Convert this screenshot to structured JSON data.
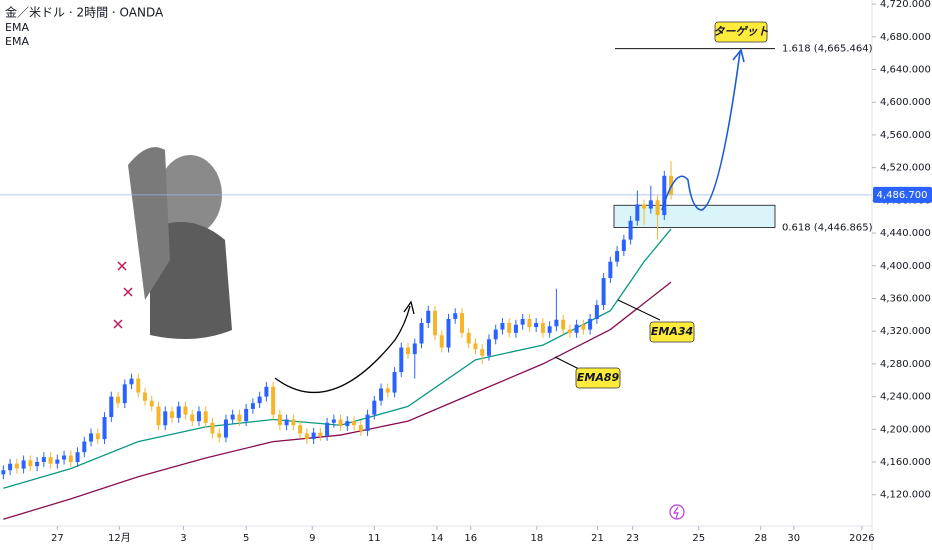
{
  "chart_data": {
    "type": "candlestick",
    "title": "金／米ドル · 2時間 · OANDA",
    "indicators": [
      "EMA",
      "EMA"
    ],
    "up_color": "#2962ff",
    "down_color": "#f5b42a",
    "open": [
      4145,
      4150,
      4158,
      4152,
      4162,
      4155,
      4160,
      4166,
      4158,
      4163,
      4168,
      4160,
      4172,
      4185,
      4195,
      4188,
      4215,
      4240,
      4232,
      4255,
      4262,
      4245,
      4235,
      4228,
      4205,
      4222,
      4214,
      4228,
      4218,
      4210,
      4222,
      4208,
      4195,
      4190,
      4212,
      4218,
      4210,
      4225,
      4232,
      4240,
      4252,
      4218,
      4205,
      4212,
      4205,
      4195,
      4188,
      4196,
      4192,
      4208,
      4212,
      4204,
      4210,
      4205,
      4198,
      4218,
      4235,
      4250,
      4245,
      4270,
      4300,
      4292,
      4305,
      4330,
      4345,
      4315,
      4300,
      4335,
      4342,
      4318,
      4305,
      4298,
      4290,
      4310,
      4322,
      4330,
      4318,
      4328,
      4335,
      4325,
      4330,
      4318,
      4326,
      4334,
      4322,
      4318,
      4328,
      4322,
      4335,
      4352,
      4385,
      4405,
      4418,
      4432,
      4455,
      4475,
      4470,
      4480,
      4462,
      4510
    ],
    "high": [
      4156,
      4164,
      4164,
      4168,
      4168,
      4166,
      4172,
      4172,
      4169,
      4174,
      4174,
      4178,
      4191,
      4201,
      4201,
      4221,
      4246,
      4246,
      4261,
      4268,
      4268,
      4251,
      4241,
      4234,
      4228,
      4228,
      4234,
      4234,
      4224,
      4228,
      4228,
      4214,
      4201,
      4218,
      4224,
      4224,
      4231,
      4238,
      4246,
      4258,
      4258,
      4224,
      4218,
      4218,
      4211,
      4201,
      4202,
      4202,
      4214,
      4218,
      4218,
      4216,
      4216,
      4211,
      4224,
      4241,
      4256,
      4256,
      4276,
      4306,
      4306,
      4311,
      4336,
      4351,
      4351,
      4321,
      4341,
      4348,
      4348,
      4324,
      4311,
      4304,
      4316,
      4328,
      4336,
      4336,
      4334,
      4341,
      4341,
      4336,
      4336,
      4332,
      4372,
      4340,
      4328,
      4334,
      4334,
      4341,
      4358,
      4391,
      4411,
      4424,
      4438,
      4461,
      4492,
      4481,
      4498,
      4486,
      4516,
      4528
    ],
    "low": [
      4139,
      4144,
      4146,
      4146,
      4149,
      4149,
      4154,
      4152,
      4152,
      4157,
      4154,
      4154,
      4166,
      4179,
      4182,
      4182,
      4209,
      4226,
      4226,
      4249,
      4239,
      4229,
      4222,
      4199,
      4199,
      4208,
      4208,
      4212,
      4204,
      4204,
      4202,
      4189,
      4184,
      4184,
      4206,
      4204,
      4204,
      4219,
      4226,
      4234,
      4212,
      4199,
      4199,
      4199,
      4189,
      4182,
      4182,
      4186,
      4186,
      4202,
      4198,
      4198,
      4199,
      4192,
      4192,
      4212,
      4229,
      4239,
      4239,
      4264,
      4286,
      4262,
      4299,
      4324,
      4309,
      4294,
      4294,
      4329,
      4312,
      4299,
      4292,
      4280,
      4284,
      4304,
      4316,
      4312,
      4312,
      4322,
      4319,
      4319,
      4312,
      4312,
      4320,
      4316,
      4312,
      4312,
      4316,
      4316,
      4329,
      4346,
      4379,
      4399,
      4412,
      4426,
      4449,
      4450,
      4464,
      4432,
      4456,
      4481
    ],
    "close": [
      4150,
      4158,
      4152,
      4162,
      4155,
      4160,
      4166,
      4158,
      4163,
      4168,
      4160,
      4172,
      4185,
      4195,
      4188,
      4215,
      4240,
      4232,
      4255,
      4262,
      4245,
      4235,
      4228,
      4205,
      4222,
      4214,
      4228,
      4218,
      4210,
      4222,
      4208,
      4195,
      4190,
      4212,
      4218,
      4210,
      4225,
      4232,
      4240,
      4252,
      4218,
      4205,
      4212,
      4205,
      4195,
      4188,
      4196,
      4192,
      4208,
      4212,
      4204,
      4210,
      4205,
      4198,
      4218,
      4235,
      4250,
      4245,
      4270,
      4300,
      4292,
      4305,
      4330,
      4345,
      4315,
      4300,
      4335,
      4342,
      4318,
      4305,
      4298,
      4290,
      4310,
      4322,
      4330,
      4318,
      4328,
      4335,
      4325,
      4330,
      4318,
      4326,
      4334,
      4322,
      4318,
      4328,
      4322,
      4335,
      4352,
      4385,
      4405,
      4418,
      4432,
      4455,
      4475,
      4470,
      4480,
      4462,
      4510,
      4487
    ],
    "lines": [
      {
        "name": "EMA34",
        "color": "#089981",
        "x": [
          0,
          10,
          20,
          30,
          40,
          50,
          60,
          70,
          80,
          90,
          95,
          99
        ],
        "values": [
          4128,
          4152,
          4185,
          4203,
          4212,
          4205,
          4228,
          4285,
          4303,
          4345,
          4405,
          4445
        ]
      },
      {
        "name": "EMA89",
        "color": "#880e4f",
        "x": [
          0,
          10,
          20,
          30,
          40,
          50,
          60,
          70,
          80,
          90,
          99
        ],
        "values": [
          4090,
          4115,
          4142,
          4165,
          4185,
          4193,
          4210,
          4245,
          4280,
          4322,
          4380
        ]
      }
    ],
    "xlim": [
      -0.5,
      128.5
    ],
    "xticks": [
      {
        "value": 8,
        "label": "27"
      },
      {
        "value": 17.2,
        "label": "12月"
      },
      {
        "value": 26.7,
        "label": "3"
      },
      {
        "value": 36,
        "label": "5"
      },
      {
        "value": 45.8,
        "label": "9"
      },
      {
        "value": 55,
        "label": "11"
      },
      {
        "value": 64.3,
        "label": "14"
      },
      {
        "value": 69.3,
        "label": "16"
      },
      {
        "value": 79.1,
        "label": "18"
      },
      {
        "value": 88.1,
        "label": "21"
      },
      {
        "value": 93.3,
        "label": "23"
      },
      {
        "value": 103.1,
        "label": "25"
      },
      {
        "value": 112.3,
        "label": "28"
      },
      {
        "value": 117.2,
        "label": "30"
      },
      {
        "value": 127.3,
        "label": "2026"
      }
    ],
    "ylim": [
      4083,
      4725
    ],
    "yticks": [
      {
        "value": 4120,
        "label": "4,120.000"
      },
      {
        "value": 4160,
        "label": "4,160.000"
      },
      {
        "value": 4200,
        "label": "4,200.000"
      },
      {
        "value": 4240,
        "label": "4,240.000"
      },
      {
        "value": 4280,
        "label": "4,280.000"
      },
      {
        "value": 4320,
        "label": "4,320.000"
      },
      {
        "value": 4360,
        "label": "4,360.000"
      },
      {
        "value": 4400,
        "label": "4,400.000"
      },
      {
        "value": 4440,
        "label": "4,440.000"
      },
      {
        "value": 4480,
        "label": "4,480.000"
      },
      {
        "value": 4520,
        "label": "4,520.000"
      },
      {
        "value": 4560,
        "label": "4,560.000"
      },
      {
        "value": 4600,
        "label": "4,600.000"
      },
      {
        "value": 4640,
        "label": "4,640.000"
      },
      {
        "value": 4680,
        "label": "4,680.000"
      },
      {
        "value": 4720,
        "label": "4,720.000"
      }
    ],
    "last_price": {
      "value": 4486.7,
      "label": "4,486.700"
    },
    "fib_levels": [
      {
        "value": 4665.464,
        "label": "1.618 (4,665.464)"
      },
      {
        "value": 4446.865,
        "label": "0.618 (4,446.865)"
      }
    ],
    "zone_top": 4474,
    "target_label": "ターゲット",
    "grid": false
  }
}
